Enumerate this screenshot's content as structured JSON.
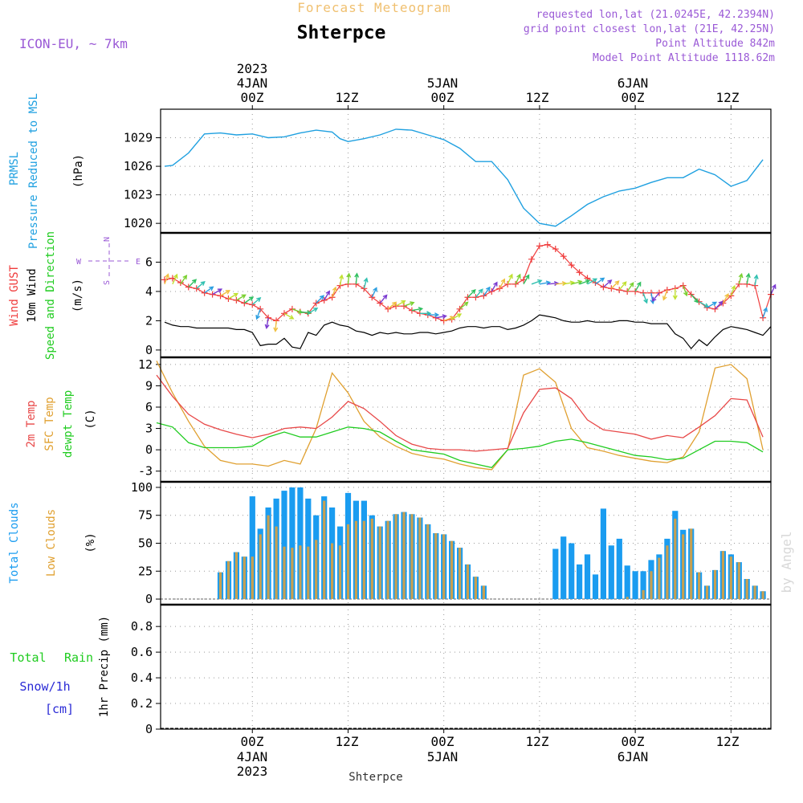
{
  "header": {
    "product": "Forecast Meteogram",
    "location": "Shterpce",
    "model": "ICON-EU, ~ 7km",
    "requested": "requested lon,lat (21.0245E, 42.2394N)",
    "grid_point": "grid point closest lon,lat (21E, 42.25N)",
    "point_altitude": "Point Altitude 842m",
    "model_altitude": "Model Point Altitude 1118.62m",
    "footer_location": "Shterpce",
    "watermark": "by Angel"
  },
  "time_axis": {
    "top_year": "2023",
    "top_dates": [
      "4JAN",
      "5JAN",
      "6JAN"
    ],
    "bottom_year": "2023",
    "bottom_dates": [
      "4JAN",
      "5JAN",
      "6JAN"
    ],
    "hour_labels": [
      "00Z",
      "12Z",
      "00Z",
      "12Z",
      "00Z",
      "12Z"
    ],
    "hour_positions": [
      0,
      12,
      24,
      36,
      48,
      60
    ],
    "range_hours": [
      -11.5,
      65
    ]
  },
  "panels": {
    "pressure": {
      "title1": "PRMSL",
      "title2": "Pressure Reduced to MSL",
      "unit": "(hPa)",
      "ticks": [
        "1020",
        "1023",
        "1026",
        "1029"
      ]
    },
    "wind": {
      "title_gust": "Wind GUST",
      "title_wind": "10m Wind",
      "title_dir": "Speed and Direction",
      "unit": "(m/s)",
      "ticks": [
        "0",
        "2",
        "4",
        "6"
      ],
      "compass": [
        "N",
        "S",
        "W",
        "E"
      ]
    },
    "temp": {
      "title_t2m": "2m Temp",
      "title_sfc": "SFC Temp",
      "title_dew": "dewpt Temp",
      "unit": "(C)",
      "ticks": [
        "-3",
        "0",
        "3",
        "6",
        "9",
        "12"
      ]
    },
    "clouds": {
      "title_total": "Total Clouds",
      "title_low": "Low Clouds",
      "unit": "(%)",
      "ticks": [
        "0",
        "25",
        "50",
        "75",
        "100"
      ]
    },
    "precip": {
      "title_rain1": "Total",
      "title_rain2": "Rain",
      "title_snow": "Snow/1h",
      "title_snow_unit": "[cm]",
      "axis_label": "1hr Precip (mm)",
      "ticks": [
        "0",
        "0.2",
        "0.4",
        "0.6",
        "0.8"
      ]
    }
  },
  "colors": {
    "prmsl": "#1fa0e0",
    "gust": "#f03c3c",
    "wind10m": "#000000",
    "t2m": "#e84848",
    "tsfc": "#e0a030",
    "dewpt": "#20cc20",
    "total_clouds": "#1a9cf0",
    "low_clouds": "#c8a050",
    "title": "#9a59d6",
    "product": "#f0c070",
    "rain": "#20cc20",
    "snow": "#2a2ad6"
  },
  "chart_data": [
    {
      "type": "line",
      "name": "PRMSL",
      "ylim": [
        1019,
        1032
      ],
      "x": [
        -11,
        -10,
        -8,
        -6,
        -4,
        -2,
        0,
        2,
        4,
        6,
        8,
        10,
        11,
        12,
        14,
        16,
        18,
        20,
        22,
        24,
        26,
        28,
        30,
        32,
        34,
        36,
        38,
        40,
        42,
        44,
        46,
        48,
        50,
        52,
        54,
        56,
        58,
        60,
        62,
        64
      ],
      "y": [
        1026.0,
        1026.1,
        1027.4,
        1029.4,
        1029.5,
        1029.3,
        1029.4,
        1029.0,
        1029.1,
        1029.5,
        1029.8,
        1029.6,
        1028.9,
        1028.6,
        1028.9,
        1029.3,
        1029.9,
        1029.8,
        1029.3,
        1028.8,
        1027.9,
        1026.5,
        1026.5,
        1024.6,
        1021.6,
        1020.0,
        1019.7,
        1020.8,
        1022.0,
        1022.8,
        1023.4,
        1023.7,
        1024.3,
        1024.8,
        1024.8,
        1025.7,
        1025.1,
        1023.9,
        1024.5,
        1026.7
      ]
    },
    {
      "type": "line",
      "name": "Wind",
      "ylim": [
        -0.5,
        8
      ],
      "gust": {
        "x": [
          -11,
          -10,
          -9,
          -8,
          -7,
          -6,
          -5,
          -4,
          -3,
          -2,
          -1,
          0,
          1,
          2,
          3,
          4,
          5,
          6,
          7,
          8,
          9,
          10,
          11,
          12,
          13,
          14,
          15,
          16,
          17,
          18,
          19,
          20,
          21,
          22,
          23,
          24,
          25,
          26,
          27,
          28,
          29,
          30,
          31,
          32,
          33,
          34,
          35,
          36,
          37,
          38,
          39,
          40,
          41,
          42,
          43,
          44,
          45,
          46,
          47,
          48,
          49,
          50,
          51,
          52,
          53,
          54,
          55,
          56,
          57,
          58,
          59,
          60,
          61,
          62,
          63,
          64,
          65
        ],
        "y": [
          4.8,
          4.9,
          4.6,
          4.3,
          4.2,
          3.9,
          3.8,
          3.7,
          3.5,
          3.4,
          3.2,
          3.1,
          2.8,
          2.2,
          2.0,
          2.5,
          2.8,
          2.6,
          2.5,
          3.2,
          3.4,
          3.6,
          4.4,
          4.5,
          4.5,
          4.2,
          3.6,
          3.2,
          2.8,
          3.0,
          3.0,
          2.7,
          2.5,
          2.4,
          2.2,
          2.0,
          2.1,
          2.8,
          3.6,
          3.6,
          3.7,
          4.0,
          4.2,
          4.5,
          4.5,
          4.8,
          6.2,
          7.1,
          7.2,
          6.9,
          6.4,
          5.8,
          5.3,
          4.9,
          4.6,
          4.3,
          4.2,
          4.1,
          4.0,
          4.0,
          3.9,
          3.9,
          3.9,
          4.1,
          4.2,
          4.4,
          3.8,
          3.3,
          2.9,
          2.8,
          3.2,
          3.7,
          4.5,
          4.5,
          4.4,
          2.2,
          3.8
        ]
      },
      "wind10m": {
        "x": [
          -11,
          -10,
          -9,
          -8,
          -7,
          -6,
          -5,
          -4,
          -3,
          -2,
          -1,
          0,
          1,
          2,
          3,
          4,
          5,
          6,
          7,
          8,
          9,
          10,
          11,
          12,
          13,
          14,
          15,
          16,
          17,
          18,
          19,
          20,
          21,
          22,
          23,
          24,
          25,
          26,
          27,
          28,
          29,
          30,
          31,
          32,
          33,
          34,
          35,
          36,
          37,
          38,
          39,
          40,
          41,
          42,
          43,
          44,
          45,
          46,
          47,
          48,
          49,
          50,
          51,
          52,
          53,
          54,
          55,
          56,
          57,
          58,
          59,
          60,
          61,
          62,
          63,
          64,
          65
        ],
        "y": [
          1.9,
          1.7,
          1.6,
          1.6,
          1.5,
          1.5,
          1.5,
          1.5,
          1.5,
          1.4,
          1.4,
          1.2,
          0.3,
          0.4,
          0.4,
          0.8,
          0.2,
          0.1,
          1.2,
          1.0,
          1.7,
          1.9,
          1.7,
          1.6,
          1.3,
          1.2,
          1.0,
          1.2,
          1.1,
          1.2,
          1.1,
          1.1,
          1.2,
          1.2,
          1.1,
          1.2,
          1.3,
          1.5,
          1.6,
          1.6,
          1.5,
          1.6,
          1.6,
          1.4,
          1.5,
          1.7,
          2.0,
          2.4,
          2.3,
          2.2,
          2.0,
          1.9,
          1.9,
          2.0,
          1.9,
          1.9,
          1.9,
          2.0,
          2.0,
          1.9,
          1.9,
          1.8,
          1.8,
          1.8,
          1.1,
          0.8,
          0.1,
          0.7,
          0.3,
          0.9,
          1.4,
          1.6,
          1.5,
          1.4,
          1.2,
          1.0,
          1.6
        ]
      },
      "arrows": {
        "x": [
          -11,
          -10,
          -9,
          -8,
          -7,
          -6,
          -5,
          -4,
          -3,
          -2,
          -1,
          0,
          1,
          2,
          3,
          4,
          5,
          6,
          7,
          8,
          9,
          10,
          11,
          12,
          13,
          14,
          15,
          16,
          17,
          18,
          19,
          20,
          21,
          22,
          23,
          24,
          25,
          26,
          27,
          28,
          29,
          30,
          31,
          32,
          33,
          34,
          35,
          36,
          37,
          38,
          39,
          40,
          41,
          42,
          43,
          44,
          45,
          46,
          47,
          48,
          49,
          50,
          51,
          52,
          53,
          54,
          55,
          56,
          57,
          58,
          59,
          60,
          61,
          62,
          63,
          64,
          65
        ],
        "dir": [
          20,
          25,
          35,
          45,
          50,
          55,
          60,
          60,
          60,
          60,
          55,
          50,
          200,
          190,
          185,
          120,
          110,
          95,
          60,
          45,
          30,
          20,
          10,
          5,
          5,
          15,
          25,
          40,
          50,
          60,
          70,
          80,
          90,
          90,
          80,
          70,
          60,
          50,
          45,
          40,
          35,
          30,
          28,
          25,
          25,
          30,
          70,
          80,
          85,
          85,
          80,
          75,
          70,
          60,
          55,
          50,
          45,
          40,
          35,
          30,
          160,
          170,
          220,
          200,
          180,
          160,
          140,
          120,
          60,
          45,
          30,
          20,
          15,
          10,
          10,
          20,
          25
        ]
      }
    },
    {
      "type": "line",
      "name": "Temperature",
      "ylim": [
        -4.5,
        13
      ],
      "t2m": {
        "x": [
          -12,
          -10,
          -8,
          -6,
          -4,
          -2,
          0,
          2,
          4,
          6,
          8,
          10,
          12,
          14,
          16,
          18,
          20,
          22,
          24,
          26,
          28,
          30,
          32,
          34,
          36,
          38,
          40,
          42,
          44,
          46,
          48,
          50,
          52,
          54,
          56,
          58,
          60,
          62,
          64
        ],
        "y": [
          10.5,
          7.5,
          5.0,
          3.6,
          2.8,
          2.2,
          1.7,
          2.2,
          3.0,
          3.2,
          3.0,
          4.6,
          6.8,
          5.8,
          4.0,
          2.0,
          0.8,
          0.2,
          0.0,
          0.0,
          -0.2,
          0.0,
          0.2,
          5.2,
          8.5,
          8.7,
          7.2,
          4.2,
          2.8,
          2.5,
          2.2,
          1.5,
          2.0,
          1.7,
          3.2,
          4.8,
          7.2,
          7.0,
          1.8
        ]
      },
      "tsfc": {
        "x": [
          -12,
          -10,
          -8,
          -6,
          -4,
          -2,
          0,
          2,
          4,
          6,
          8,
          10,
          12,
          14,
          16,
          18,
          20,
          22,
          24,
          26,
          28,
          30,
          32,
          34,
          36,
          38,
          40,
          42,
          44,
          46,
          48,
          50,
          52,
          54,
          56,
          58,
          60,
          62,
          64
        ],
        "y": [
          12.5,
          8.0,
          4.0,
          0.5,
          -1.5,
          -2.0,
          -2.0,
          -2.3,
          -1.5,
          -2.0,
          3.0,
          10.8,
          8.0,
          4.0,
          1.8,
          0.5,
          -0.5,
          -1.0,
          -1.3,
          -2.0,
          -2.5,
          -2.8,
          0.0,
          10.5,
          11.4,
          9.5,
          3.0,
          0.3,
          -0.2,
          -0.8,
          -1.2,
          -1.6,
          -1.8,
          -1.0,
          2.5,
          11.5,
          12.0,
          10.0,
          0.0
        ]
      },
      "dewpt": {
        "x": [
          -12,
          -10,
          -8,
          -6,
          -4,
          -2,
          0,
          2,
          4,
          6,
          8,
          10,
          12,
          14,
          16,
          18,
          20,
          22,
          24,
          26,
          28,
          30,
          32,
          34,
          36,
          38,
          40,
          42,
          44,
          46,
          48,
          50,
          52,
          54,
          56,
          58,
          60,
          62,
          64
        ],
        "y": [
          3.8,
          3.2,
          1.0,
          0.3,
          0.3,
          0.3,
          0.5,
          1.8,
          2.5,
          1.8,
          1.8,
          2.5,
          3.2,
          3.0,
          2.5,
          1.2,
          0.0,
          -0.3,
          -0.6,
          -1.5,
          -2.0,
          -2.5,
          0.0,
          0.2,
          0.5,
          1.2,
          1.5,
          1.0,
          0.4,
          -0.2,
          -0.8,
          -1.0,
          -1.4,
          -1.2,
          0.0,
          1.2,
          1.2,
          1.0,
          -0.3
        ]
      }
    },
    {
      "type": "bar",
      "name": "Clouds",
      "ylim": [
        -5,
        105
      ],
      "x": [
        -11,
        -10,
        -9,
        -8,
        -7,
        -6,
        -5,
        -4,
        -3,
        -2,
        -1,
        0,
        1,
        2,
        3,
        4,
        5,
        6,
        7,
        8,
        9,
        10,
        11,
        12,
        13,
        14,
        15,
        16,
        17,
        18,
        19,
        20,
        21,
        22,
        23,
        24,
        25,
        26,
        27,
        28,
        29,
        30,
        31,
        32,
        33,
        34,
        35,
        36,
        37,
        38,
        39,
        40,
        41,
        42,
        43,
        44,
        45,
        46,
        47,
        48,
        49,
        50,
        51,
        52,
        53,
        54,
        55,
        56,
        57,
        58,
        59,
        60,
        61,
        62,
        63,
        64
      ],
      "total": [
        0,
        0,
        0,
        0,
        0,
        0,
        0,
        24,
        34,
        42,
        38,
        92,
        63,
        82,
        90,
        97,
        100,
        100,
        90,
        75,
        92,
        82,
        65,
        95,
        88,
        88,
        75,
        65,
        70,
        76,
        78,
        76,
        73,
        67,
        59,
        58,
        52,
        46,
        31,
        20,
        12,
        0,
        0,
        0,
        0,
        0,
        0,
        0,
        0,
        45,
        56,
        50,
        31,
        40,
        22,
        81,
        48,
        54,
        30,
        25,
        25,
        35,
        40,
        54,
        79,
        62,
        63,
        24,
        12,
        26,
        43,
        40,
        33,
        18,
        12,
        7
      ],
      "low": [
        0,
        0,
        0,
        0,
        0,
        0,
        0,
        24,
        34,
        42,
        38,
        38,
        58,
        75,
        65,
        47,
        46,
        48,
        47,
        53,
        88,
        50,
        48,
        67,
        70,
        70,
        72,
        65,
        70,
        76,
        78,
        76,
        73,
        67,
        59,
        58,
        52,
        46,
        31,
        20,
        12,
        0,
        0,
        0,
        0,
        0,
        0,
        0,
        0,
        0,
        0,
        0,
        0,
        0,
        0,
        0,
        0,
        0,
        2,
        0,
        8,
        25,
        37,
        48,
        72,
        58,
        63,
        24,
        12,
        26,
        43,
        38,
        33,
        18,
        12,
        7
      ]
    },
    {
      "type": "bar",
      "name": "Precipitation",
      "ylim": [
        0,
        0.97
      ],
      "x": [],
      "rain": [],
      "snow": []
    }
  ]
}
